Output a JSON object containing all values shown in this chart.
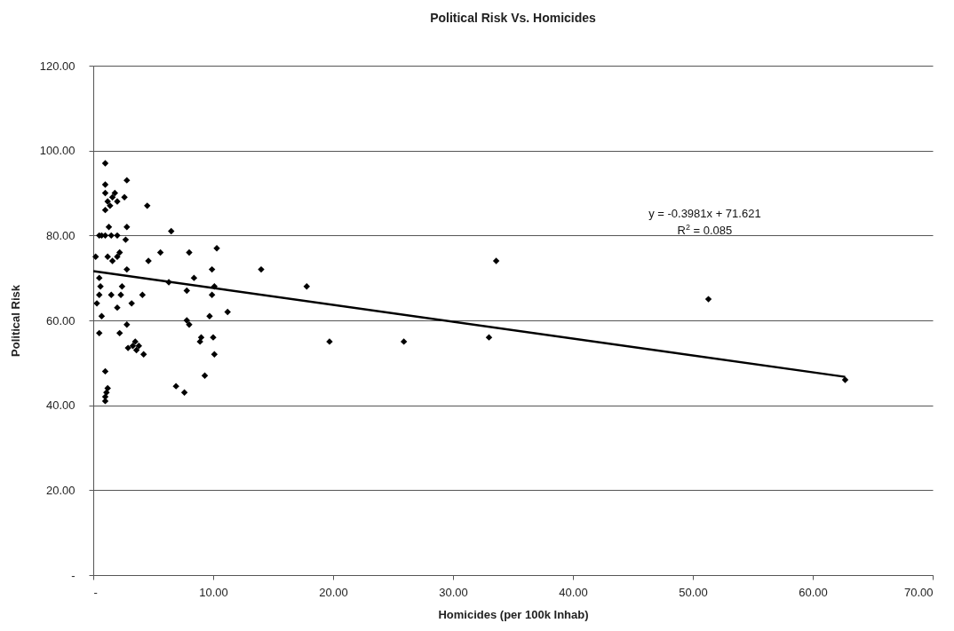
{
  "chart_data": {
    "type": "scatter",
    "title": "Political Risk Vs. Homicides",
    "xlabel": "Homicides (per 100k Inhab)",
    "ylabel": "Political Risk",
    "xlim": [
      0,
      70
    ],
    "ylim": [
      0,
      120
    ],
    "xticks": [
      {
        "value": 0,
        "label": "-"
      },
      {
        "value": 10,
        "label": "10.00"
      },
      {
        "value": 20,
        "label": "20.00"
      },
      {
        "value": 30,
        "label": "30.00"
      },
      {
        "value": 40,
        "label": "40.00"
      },
      {
        "value": 50,
        "label": "50.00"
      },
      {
        "value": 60,
        "label": "60.00"
      },
      {
        "value": 70,
        "label": "70.00"
      }
    ],
    "yticks": [
      {
        "value": 0,
        "label": "-"
      },
      {
        "value": 20,
        "label": "20.00"
      },
      {
        "value": 40,
        "label": "40.00"
      },
      {
        "value": 60,
        "label": "60.00"
      },
      {
        "value": 80,
        "label": "80.00"
      },
      {
        "value": 100,
        "label": "100.00"
      },
      {
        "value": 120,
        "label": "120.00"
      }
    ],
    "grid": "y",
    "annotations": [
      "y = -0.3981x + 71.621",
      "R$^{2}$ = 0.085"
    ],
    "series": [
      {
        "marker": "diamond",
        "color": "#000000",
        "x": [
          1.0,
          1.0,
          1.0,
          1.2,
          1.0,
          1.4,
          1.6,
          1.8,
          2.0,
          1.3,
          1.0,
          0.7,
          0.5,
          1.5,
          2.0,
          1.2,
          1.6,
          2.0,
          2.2,
          0.2,
          0.5,
          0.6,
          0.3,
          0.5,
          0.7,
          0.5,
          1.0,
          1.2,
          1.1,
          1.0,
          1.0,
          2.8,
          2.6,
          2.8,
          2.7,
          2.8,
          2.4,
          2.3,
          2.0,
          2.2,
          1.5,
          2.8,
          2.9,
          3.2,
          3.5,
          3.3,
          3.6,
          3.8,
          4.2,
          4.1,
          4.5,
          4.6,
          5.6,
          6.5,
          6.3,
          6.9,
          7.6,
          7.8,
          7.8,
          8.0,
          8.0,
          8.4,
          8.9,
          9.0,
          9.3,
          9.7,
          9.9,
          9.9,
          10.1,
          10.0,
          10.1,
          10.3,
          11.2,
          14.0,
          17.8,
          19.7,
          25.9,
          33.0,
          33.6,
          51.3,
          62.7
        ],
        "values": [
          97,
          92,
          90,
          88,
          86,
          87,
          89,
          90,
          88,
          82,
          80,
          80,
          80,
          80,
          80,
          75,
          74,
          75,
          76,
          75,
          70,
          68,
          64,
          66,
          61,
          57,
          48,
          44,
          43,
          42,
          41,
          93,
          89,
          82,
          79,
          72,
          68,
          66,
          63,
          57,
          66,
          59,
          53.5,
          64,
          55,
          54,
          53,
          54,
          52,
          66,
          87,
          74,
          76,
          81,
          69,
          44.5,
          43,
          67,
          60,
          59,
          76,
          70,
          55,
          56,
          47,
          61,
          72,
          66,
          68,
          56,
          52,
          77,
          62,
          72,
          68,
          55,
          55,
          56,
          74,
          65,
          46
        ]
      },
      {
        "type": "line",
        "marker": "none",
        "color": "#000000",
        "x": [
          0,
          62.7
        ],
        "values": [
          71.6,
          46.7
        ]
      }
    ]
  }
}
